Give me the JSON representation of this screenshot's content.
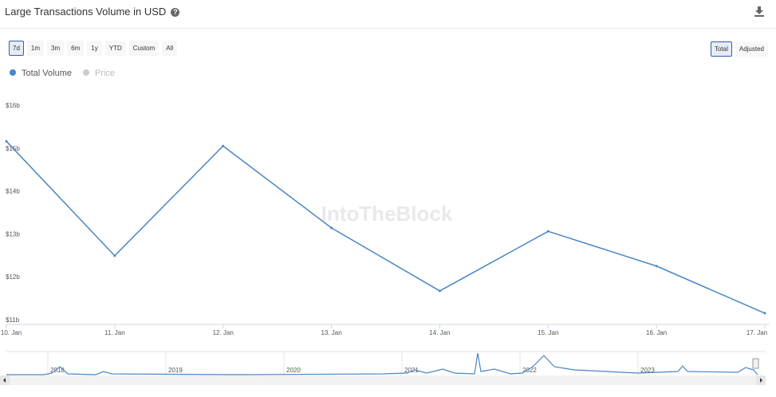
{
  "header": {
    "title": "Large Transactions Volume in USD",
    "help_icon": "question-circle-icon",
    "download_icon": "download-icon"
  },
  "range_buttons": [
    "7d",
    "1m",
    "3m",
    "6m",
    "1y",
    "YTD",
    "Custom",
    "All"
  ],
  "range_selected": "7d",
  "mode_buttons": [
    "Total",
    "Adjusted"
  ],
  "mode_selected": "Total",
  "legend": [
    {
      "label": "Total Volume",
      "color": "#4a86c5"
    },
    {
      "label": "Price",
      "color": "#cccccc"
    }
  ],
  "watermark": "IntoTheBlock",
  "chart_data": {
    "type": "line",
    "x": [
      "10. Jan",
      "11. Jan",
      "12. Jan",
      "13. Jan",
      "14. Jan",
      "15. Jan",
      "16. Jan",
      "17. Jan"
    ],
    "series": [
      {
        "name": "Total Volume",
        "values": [
          15.16,
          12.49,
          15.05,
          13.14,
          11.67,
          13.06,
          12.25,
          11.15
        ]
      }
    ],
    "yticks": [
      "$11b",
      "$12b",
      "$13b",
      "$14b",
      "$15b",
      "$16b"
    ],
    "ylim": [
      11,
      16
    ],
    "grid": false,
    "legend": "top-left"
  },
  "navigator": {
    "years": [
      "2018",
      "2019",
      "2020",
      "2021",
      "2022",
      "2023"
    ]
  }
}
